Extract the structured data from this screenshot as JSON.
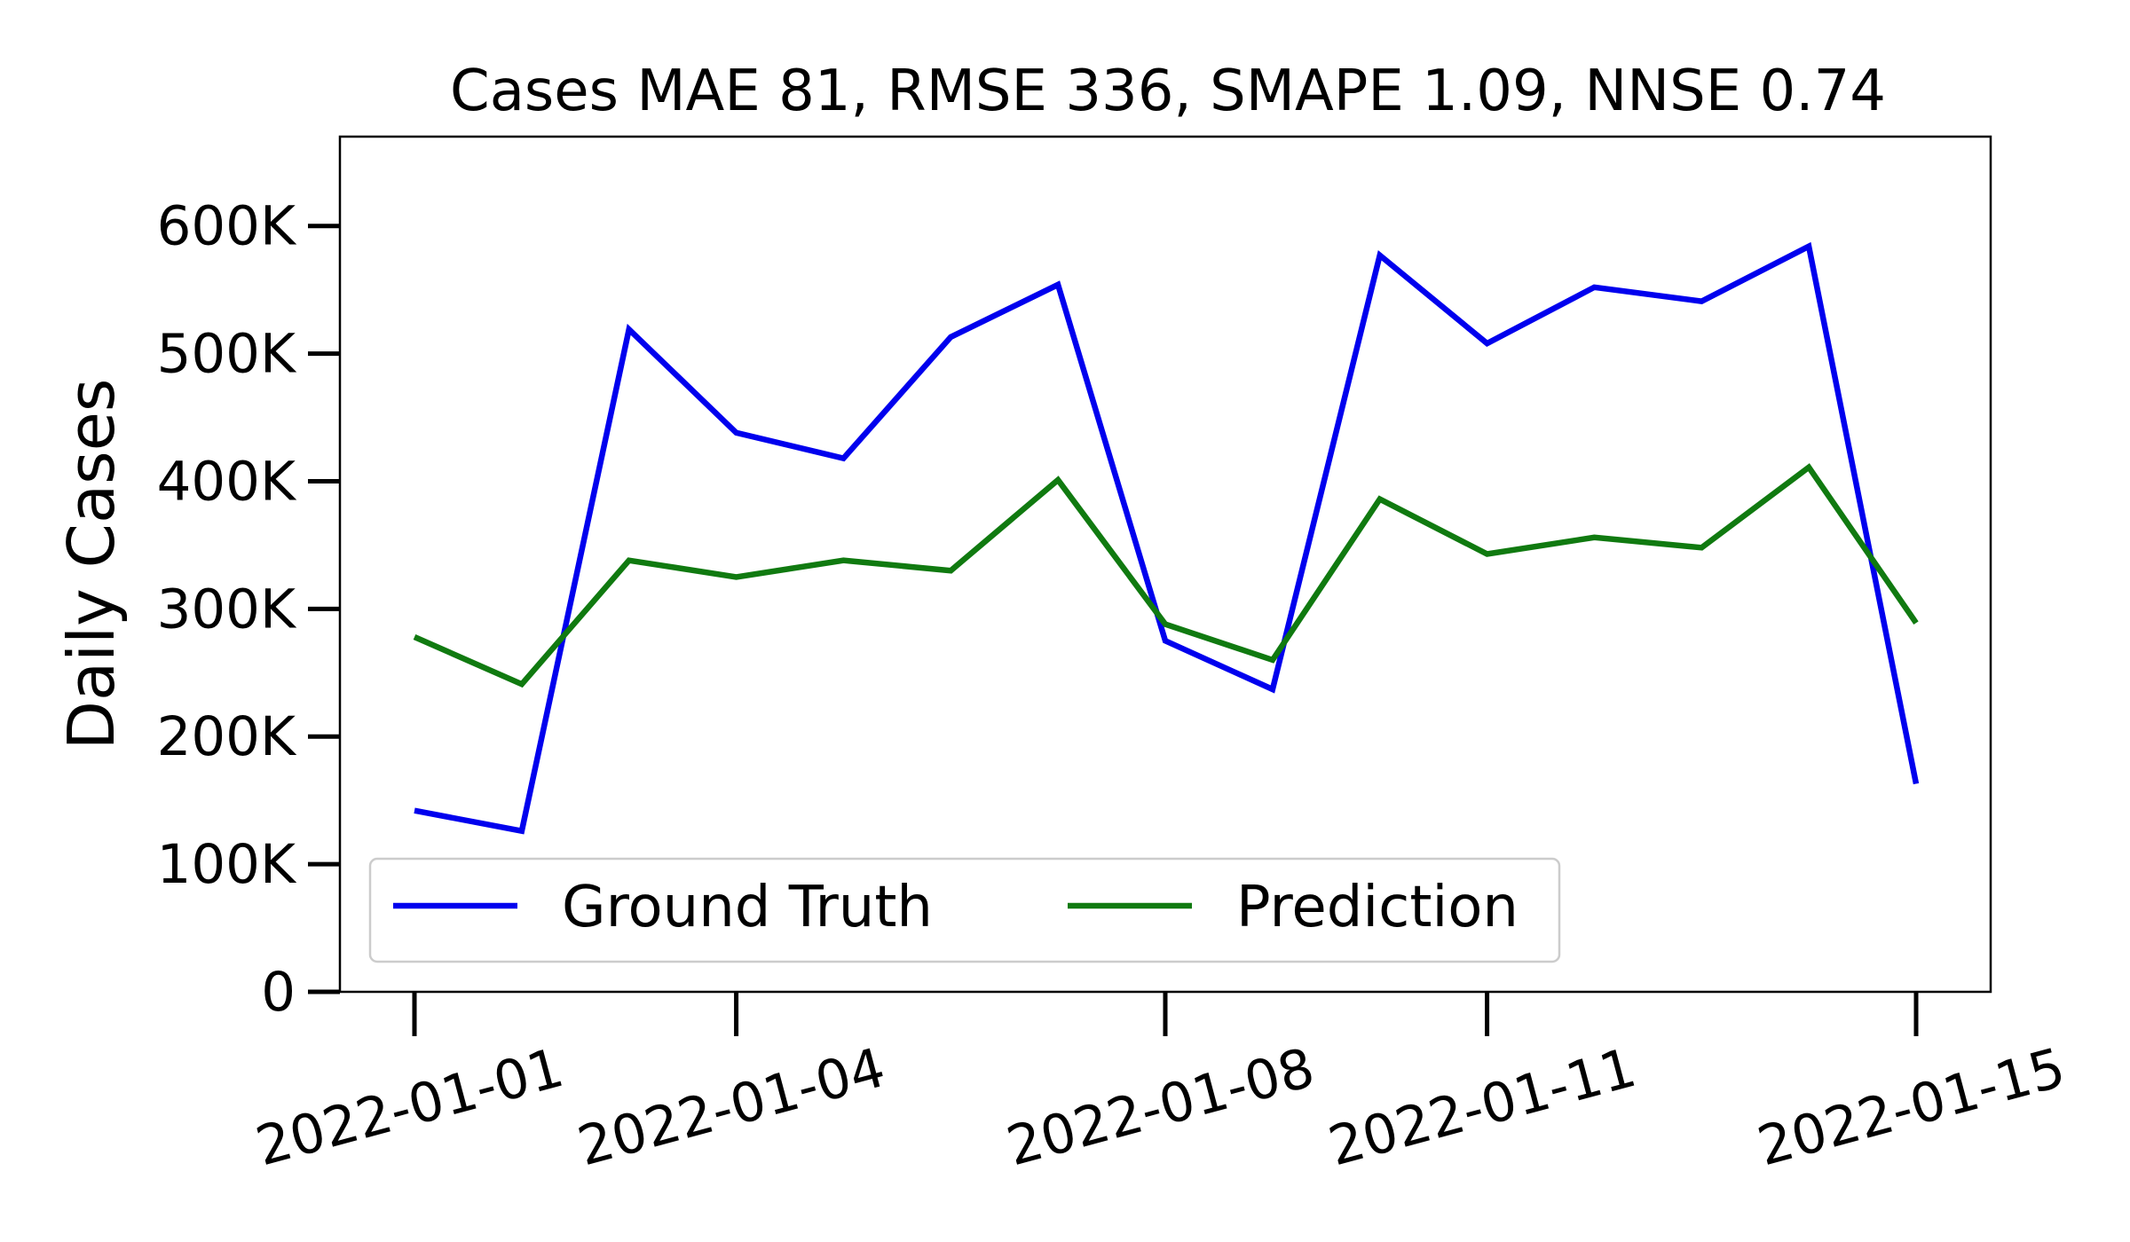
{
  "chart_data": {
    "type": "line",
    "title": "Cases MAE 81, RMSE 336, SMAPE 1.09, NNSE 0.74",
    "xlabel": "",
    "ylabel": "Daily Cases",
    "x": [
      "2022-01-01",
      "2022-01-02",
      "2022-01-03",
      "2022-01-04",
      "2022-01-05",
      "2022-01-06",
      "2022-01-07",
      "2022-01-08",
      "2022-01-09",
      "2022-01-10",
      "2022-01-11",
      "2022-01-12",
      "2022-01-13",
      "2022-01-14",
      "2022-01-15"
    ],
    "x_tick_labels": [
      "2022-01-01",
      "2022-01-04",
      "2022-01-08",
      "2022-01-11",
      "2022-01-15"
    ],
    "y_tick_values": [
      0,
      100000,
      200000,
      300000,
      400000,
      500000,
      600000
    ],
    "y_tick_labels": [
      "0",
      "100K",
      "200K",
      "300K",
      "400K",
      "500K",
      "600K"
    ],
    "ylim": [
      0,
      670000
    ],
    "grid": false,
    "legend_position": "lower-left",
    "series": [
      {
        "name": "Ground Truth",
        "color": "#0000ee",
        "values": [
          142000,
          126000,
          519000,
          438000,
          418000,
          513000,
          554000,
          275000,
          237000,
          577000,
          508000,
          552000,
          541000,
          584000,
          163000
        ]
      },
      {
        "name": "Prediction",
        "color": "#107a10",
        "values": [
          278000,
          241000,
          338000,
          325000,
          338000,
          330000,
          401000,
          288000,
          260000,
          386000,
          343000,
          356000,
          348000,
          411000,
          289000
        ]
      }
    ]
  }
}
